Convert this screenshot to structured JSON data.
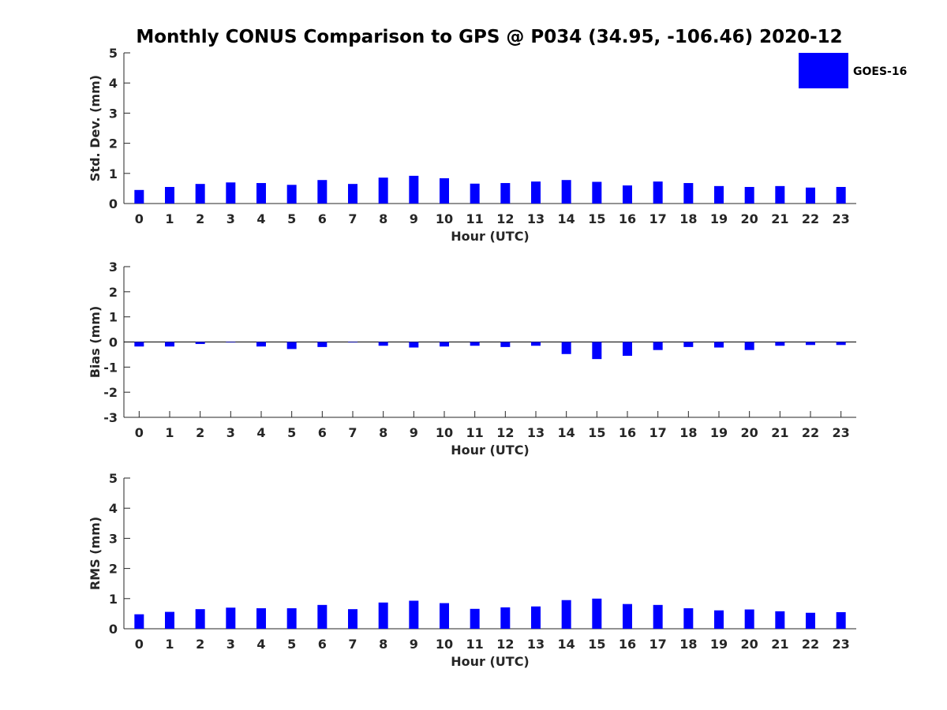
{
  "title": "Monthly CONUS Comparison to GPS @ P034 (34.95, -106.46) 2020-12",
  "bar_color": "#0000ff",
  "legend": {
    "label": "GOES-16",
    "color": "#0000ff"
  },
  "chart_data": [
    {
      "type": "bar",
      "name": "std-dev",
      "title": "",
      "xlabel": "Hour (UTC)",
      "ylabel": "Std. Dev. (mm)",
      "categories": [
        "0",
        "1",
        "2",
        "3",
        "4",
        "5",
        "6",
        "7",
        "8",
        "9",
        "10",
        "11",
        "12",
        "13",
        "14",
        "15",
        "16",
        "17",
        "18",
        "19",
        "20",
        "21",
        "22",
        "23"
      ],
      "ylim": [
        0,
        5
      ],
      "yticks": [
        0,
        1,
        2,
        3,
        4,
        5
      ],
      "series": [
        {
          "name": "GOES-16",
          "values": [
            0.45,
            0.55,
            0.65,
            0.7,
            0.68,
            0.62,
            0.78,
            0.65,
            0.86,
            0.92,
            0.84,
            0.66,
            0.68,
            0.73,
            0.78,
            0.72,
            0.6,
            0.73,
            0.68,
            0.58,
            0.55,
            0.58,
            0.53,
            0.55
          ]
        }
      ]
    },
    {
      "type": "bar",
      "name": "bias",
      "title": "",
      "xlabel": "Hour (UTC)",
      "ylabel": "Bias (mm)",
      "categories": [
        "0",
        "1",
        "2",
        "3",
        "4",
        "5",
        "6",
        "7",
        "8",
        "9",
        "10",
        "11",
        "12",
        "13",
        "14",
        "15",
        "16",
        "17",
        "18",
        "19",
        "20",
        "21",
        "22",
        "23"
      ],
      "ylim": [
        -3,
        3
      ],
      "yticks": [
        -3,
        -2,
        -1,
        0,
        1,
        2,
        3
      ],
      "series": [
        {
          "name": "GOES-16",
          "values": [
            -0.18,
            -0.18,
            -0.08,
            -0.02,
            -0.18,
            -0.28,
            -0.2,
            -0.02,
            -0.15,
            -0.22,
            -0.18,
            -0.15,
            -0.2,
            -0.15,
            -0.48,
            -0.68,
            -0.55,
            -0.32,
            -0.2,
            -0.22,
            -0.32,
            -0.15,
            -0.12,
            -0.12
          ]
        }
      ]
    },
    {
      "type": "bar",
      "name": "rms",
      "title": "",
      "xlabel": "Hour (UTC)",
      "ylabel": "RMS (mm)",
      "categories": [
        "0",
        "1",
        "2",
        "3",
        "4",
        "5",
        "6",
        "7",
        "8",
        "9",
        "10",
        "11",
        "12",
        "13",
        "14",
        "15",
        "16",
        "17",
        "18",
        "19",
        "20",
        "21",
        "22",
        "23"
      ],
      "ylim": [
        0,
        5
      ],
      "yticks": [
        0,
        1,
        2,
        3,
        4,
        5
      ],
      "series": [
        {
          "name": "GOES-16",
          "values": [
            0.48,
            0.56,
            0.65,
            0.7,
            0.68,
            0.68,
            0.79,
            0.65,
            0.87,
            0.93,
            0.85,
            0.66,
            0.71,
            0.74,
            0.95,
            1.0,
            0.82,
            0.79,
            0.68,
            0.61,
            0.64,
            0.58,
            0.53,
            0.55
          ]
        }
      ]
    }
  ]
}
